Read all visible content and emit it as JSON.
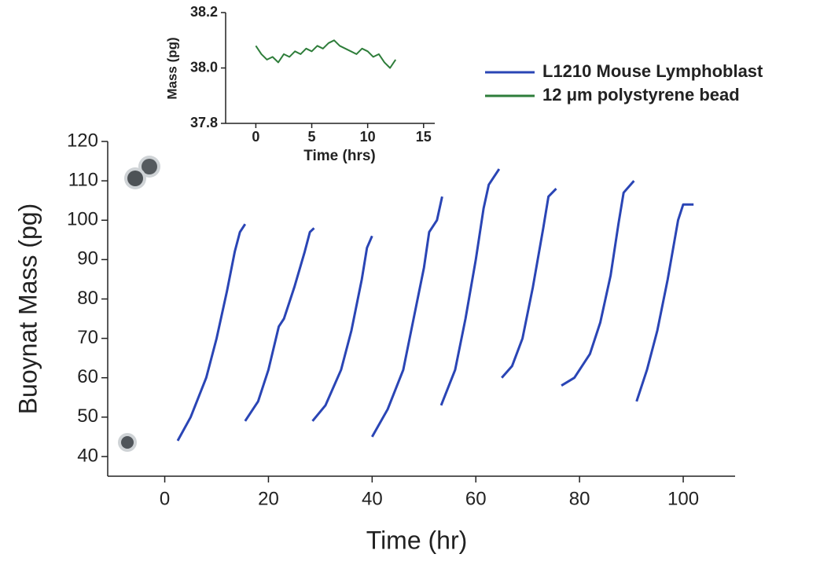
{
  "chart_data": [
    {
      "type": "line",
      "xlabel": "Time (hr)",
      "ylabel": "Buoynat Mass (pg)",
      "xlim": [
        -11,
        110
      ],
      "ylim": [
        35,
        120
      ],
      "xticks": [
        0,
        20,
        40,
        60,
        80,
        100
      ],
      "yticks": [
        40,
        50,
        60,
        70,
        80,
        90,
        100,
        110,
        120
      ],
      "series": [
        {
          "name": "L1210 Mouse Lymphoblast",
          "color": "#2a45b5",
          "x": [
            2.5,
            5,
            8,
            10,
            12,
            13.5,
            14.5,
            15.5,
            null,
            15.5,
            18,
            20,
            22,
            23,
            25,
            27,
            28,
            28.8,
            null,
            28.5,
            31,
            34,
            36,
            38,
            39,
            40,
            null,
            40,
            43,
            46,
            48,
            50,
            51,
            52.5,
            53.5,
            null,
            53.3,
            56,
            58,
            60,
            61.5,
            62.5,
            64.5,
            null,
            65,
            67,
            69,
            71,
            73,
            74,
            75.5,
            null,
            76.5,
            79,
            82,
            84,
            86,
            87.5,
            88.5,
            90.5,
            null,
            91,
            93,
            95,
            97,
            99,
            100,
            102
          ],
          "values": [
            44,
            50,
            60,
            70,
            82,
            92,
            97,
            99,
            null,
            49,
            54,
            62,
            73,
            75,
            83,
            92,
            97,
            98,
            null,
            49,
            53,
            62,
            72,
            85,
            93,
            96,
            null,
            45,
            52,
            62,
            75,
            88,
            97,
            100,
            106,
            null,
            53,
            62,
            75,
            90,
            103,
            109,
            113,
            null,
            60,
            63,
            70,
            83,
            98,
            106,
            108,
            null,
            58,
            60,
            66,
            74,
            86,
            99,
            107,
            110,
            null,
            54,
            62,
            72,
            85,
            100,
            104,
            104
          ]
        }
      ]
    },
    {
      "type": "line",
      "xlabel": "Time (hrs)",
      "ylabel": "Mass (pg)",
      "xlim": [
        -2.7,
        16
      ],
      "ylim": [
        37.8,
        38.2
      ],
      "xticks": [
        0,
        5,
        10,
        15
      ],
      "yticks": [
        37.8,
        {
          "value": 38,
          "label": "38.0"
        },
        38.2
      ],
      "series": [
        {
          "name": "12 μm polystyrene bead",
          "color": "#2e7d3a",
          "x": [
            0,
            0.5,
            1,
            1.5,
            2,
            2.5,
            3,
            3.5,
            4,
            4.5,
            5,
            5.5,
            6,
            6.5,
            7,
            7.5,
            8,
            8.5,
            9,
            9.5,
            10,
            10.5,
            11,
            11.5,
            12,
            12.5
          ],
          "values": [
            38.08,
            38.05,
            38.03,
            38.04,
            38.02,
            38.05,
            38.04,
            38.06,
            38.05,
            38.07,
            38.06,
            38.08,
            38.07,
            38.09,
            38.1,
            38.08,
            38.07,
            38.06,
            38.05,
            38.07,
            38.06,
            38.04,
            38.05,
            38.02,
            38.0,
            38.03
          ]
        }
      ]
    }
  ]
}
